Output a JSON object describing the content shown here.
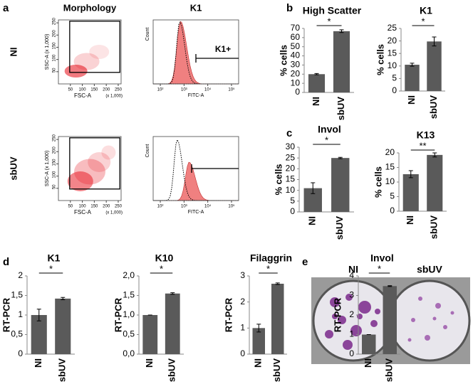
{
  "panels": [
    "a",
    "b",
    "c",
    "d",
    "e"
  ],
  "photo": {
    "labels": [
      "NI",
      "sbUV"
    ]
  },
  "chart_data": [
    {
      "type": "flow-dot-plot",
      "title": "Morphology",
      "row": "NI",
      "xlabel": "FSC-A",
      "ylabel": "SSC-A (x 1,000)",
      "xunit": "(x 1,000)",
      "xlim": [
        0,
        262
      ],
      "ylim": [
        0,
        262
      ],
      "xticks": [
        50,
        100,
        150,
        200,
        250
      ],
      "yticks": [
        50,
        100,
        150,
        200,
        250
      ],
      "color": "#e8202a"
    },
    {
      "type": "flow-histogram",
      "title": "K1",
      "xlabel": "FITC-A",
      "ylabel": "Count",
      "gate_label": "K1+",
      "log_x": true,
      "xlim": [
        50,
        200000
      ],
      "xticks": [
        {
          "value": 100,
          "label": "10²"
        },
        {
          "value": 1000,
          "label": "10³"
        },
        {
          "value": 10000,
          "label": "10⁴"
        },
        {
          "value": 100000,
          "label": "10⁵"
        }
      ],
      "color": "#f08080"
    },
    {
      "type": "flow-dot-plot",
      "row": "sbUV",
      "xlabel": "FSC-A",
      "ylabel": "SSC-A (x 1,000)",
      "xunit": "(x 1,000)",
      "xlim": [
        0,
        262
      ],
      "ylim": [
        0,
        262
      ],
      "xticks": [
        50,
        100,
        150,
        200,
        250
      ],
      "yticks": [
        50,
        100,
        150,
        200,
        250
      ],
      "color": "#e8202a"
    },
    {
      "type": "flow-histogram",
      "xlabel": "FITC-A",
      "ylabel": "Count",
      "log_x": true,
      "xlim": [
        50,
        200000
      ],
      "xticks": [
        {
          "value": 100,
          "label": "10²"
        },
        {
          "value": 1000,
          "label": "10³"
        },
        {
          "value": 10000,
          "label": "10⁴"
        },
        {
          "value": 100000,
          "label": "10⁵"
        }
      ],
      "color": "#f08080"
    },
    {
      "type": "bar",
      "title": "High Scatter",
      "ylabel": "% cells",
      "categories": [
        "NI",
        "sbUV"
      ],
      "values": [
        20,
        67
      ],
      "errors": [
        0.7,
        1.5
      ],
      "color": "#5a5a5a",
      "ylim": [
        0,
        70
      ],
      "yticks": [
        0,
        10,
        20,
        30,
        40,
        50,
        60,
        70
      ],
      "annotation": "*"
    },
    {
      "type": "bar",
      "title": "K1",
      "ylabel": "% cells",
      "categories": [
        "NI",
        "sbUV"
      ],
      "values": [
        10.5,
        19.8
      ],
      "errors": [
        0.6,
        1.8
      ],
      "color": "#5a5a5a",
      "ylim": [
        0,
        25
      ],
      "yticks": [
        0,
        5,
        10,
        15,
        20,
        25
      ],
      "annotation": "*"
    },
    {
      "type": "bar",
      "title": "Invol",
      "ylabel": "% cells",
      "categories": [
        "NI",
        "sbUV"
      ],
      "values": [
        11,
        25
      ],
      "errors": [
        2.5,
        0.3
      ],
      "color": "#5a5a5a",
      "ylim": [
        0,
        30
      ],
      "yticks": [
        0,
        5,
        10,
        15,
        20,
        25,
        30
      ],
      "annotation": "*"
    },
    {
      "type": "bar",
      "title": "K13",
      "ylabel": "% cells",
      "categories": [
        "NI",
        "sbUV"
      ],
      "values": [
        12.7,
        19.3
      ],
      "errors": [
        1.2,
        0.7
      ],
      "color": "#5a5a5a",
      "ylim": [
        0,
        20
      ],
      "yticks": [
        0,
        5,
        10,
        15,
        20
      ],
      "annotation": "**"
    },
    {
      "type": "bar",
      "title": "K1",
      "ylabel": "RT-PCR",
      "categories": [
        "NI",
        "sbUV"
      ],
      "values": [
        1.0,
        1.42
      ],
      "errors": [
        0.15,
        0.03
      ],
      "color": "#5a5a5a",
      "ylim": [
        0,
        2
      ],
      "yticks": [
        0,
        {
          "value": 0.5,
          "label": "0,5"
        },
        1,
        {
          "value": 1.5,
          "label": "1,5"
        },
        2
      ],
      "annotation": "*"
    },
    {
      "type": "bar",
      "title": "K10",
      "ylabel": "RT-PCR",
      "categories": [
        "NI",
        "sbUV"
      ],
      "values": [
        1.0,
        1.55
      ],
      "errors": [
        0,
        0.02
      ],
      "color": "#5a5a5a",
      "ylim": [
        0,
        2
      ],
      "yticks": [
        {
          "value": 0,
          "label": "0,0"
        },
        {
          "value": 0.5,
          "label": "0,5"
        },
        {
          "value": 1,
          "label": "1,0"
        },
        {
          "value": 1.5,
          "label": "1,5"
        },
        {
          "value": 2,
          "label": "2,0"
        }
      ],
      "annotation": "*"
    },
    {
      "type": "bar",
      "title": "Filaggrin",
      "ylabel": "RT-PCR",
      "categories": [
        "NI",
        "sbUV"
      ],
      "values": [
        1.0,
        2.7
      ],
      "errors": [
        0.15,
        0.03
      ],
      "color": "#5a5a5a",
      "ylim": [
        0,
        3
      ],
      "yticks": [
        0,
        1,
        2,
        3
      ],
      "annotation": "*"
    },
    {
      "type": "bar",
      "title": "Invol",
      "ylabel": "RT-PCR",
      "categories": [
        "NI",
        "sbUV"
      ],
      "values": [
        1.0,
        3.48
      ],
      "errors": [
        0,
        0.02
      ],
      "color": "#5a5a5a",
      "ylim": [
        0,
        4
      ],
      "yticks": [
        0,
        1,
        2,
        3,
        4
      ],
      "annotation": "*"
    }
  ]
}
